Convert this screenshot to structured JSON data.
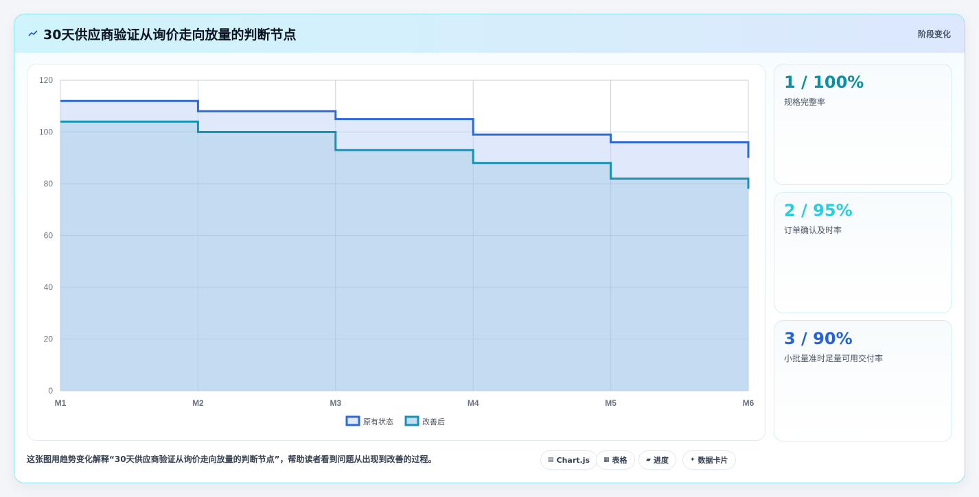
{
  "header": {
    "title": "30天供应商验证从询价走向放量的判断节点",
    "tag": "阶段变化",
    "icon": "sparkline-icon"
  },
  "chart_data": {
    "type": "line",
    "stepped": true,
    "filled": true,
    "categories": [
      "M1",
      "M2",
      "M3",
      "M4",
      "M5",
      "M6"
    ],
    "series": [
      {
        "name": "原有状态",
        "values": [
          112,
          108,
          105,
          99,
          96,
          90
        ],
        "color": "#2d6ad8",
        "fill": "#dfe9fb"
      },
      {
        "name": "改善后",
        "values": [
          104,
          100,
          93,
          88,
          82,
          78
        ],
        "color": "#1592b4",
        "fill": "#c4dcf1"
      }
    ],
    "ylim": [
      0,
      120
    ],
    "yticks": [
      0,
      20,
      40,
      60,
      80,
      100,
      120
    ],
    "grid": true,
    "legend": "bottom-center"
  },
  "stats": [
    {
      "value": "1 / 100%",
      "label": "规格完整率",
      "color": "#0b8fa3"
    },
    {
      "value": "2 / 95%",
      "label": "订单确认及时率",
      "color": "#2fcbe0"
    },
    {
      "value": "3 / 90%",
      "label": "小批量准时足量可用交付率",
      "color": "#2563d6"
    }
  ],
  "footer": {
    "text": "这张图用趋势变化解释“30天供应商验证从询价走向放量的判断节点”，帮助读者看到问题从出现到改善的过程。",
    "chips": [
      {
        "icon": "▤",
        "label": "Chart.js"
      },
      {
        "icon": "▦",
        "label": "表格"
      },
      {
        "icon": "▰",
        "label": "进度"
      },
      {
        "icon": "✦",
        "label": "数据卡片"
      }
    ]
  }
}
